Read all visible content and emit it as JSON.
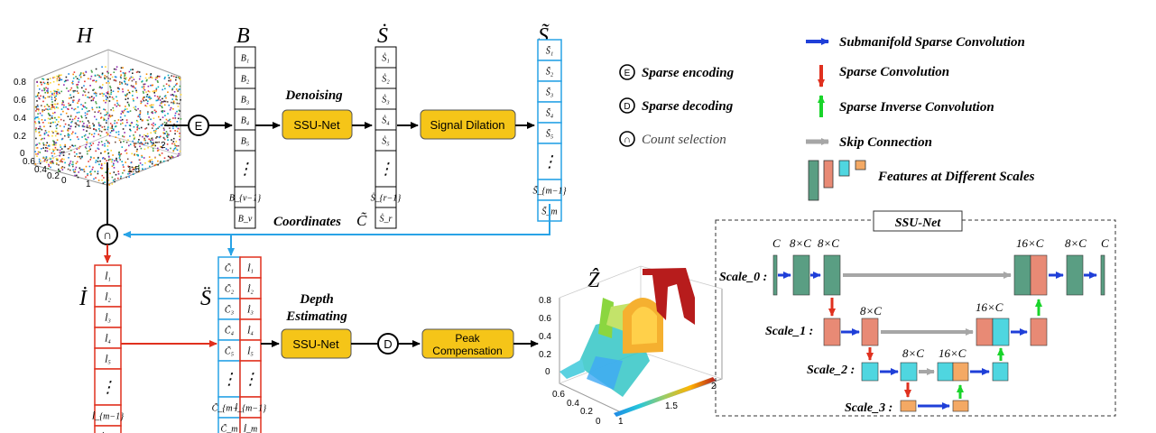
{
  "symbols": {
    "H": "H",
    "B": "B",
    "S_dot": "Ṡ",
    "S_tilde": "S̃",
    "I_dot": "İ",
    "S_ddot": "S̈",
    "Z_hat": "Ẑ"
  },
  "B_col": [
    "B₁",
    "B₂",
    "B₃",
    "B₄",
    "B₅",
    "⋮",
    "B_{v−1}",
    "B_v"
  ],
  "Sdot_col": [
    "Ṡ₁",
    "Ṡ₂",
    "Ṡ₃",
    "Ṡ₄",
    "Ṡ₅",
    "⋮",
    "Ṡ_{r−1}",
    "Ṡ_r"
  ],
  "Stilde_col": [
    "S̃₁",
    "S̃₂",
    "S̃₃",
    "S̃₄",
    "S̃₅",
    "⋮",
    "S̃_{m−1}",
    "S̃_m"
  ],
  "I_col": [
    "İ₁",
    "İ₂",
    "İ₃",
    "İ₄",
    "İ₅",
    "⋮",
    "İ_{m−1}",
    "İ_m"
  ],
  "C_col": [
    "C̃₁",
    "C̃₂",
    "C̃₃",
    "C̃₄",
    "C̃₅",
    "⋮",
    "C̃_{m−1}",
    "C̃_m"
  ],
  "labels": {
    "denoising": "Denoising",
    "ssu_net": "SSU-Net",
    "signal_dilation": "Signal Dilation",
    "coordinates": "Coordinates",
    "coordinates_sym": "C̃",
    "depth_line1": "Depth",
    "depth_line2": "Estimating",
    "peak_line1": "Peak",
    "peak_line2": "Compensation",
    "E": "E",
    "D": "D",
    "cap": "∩"
  },
  "legend": {
    "sparse_encoding": "Sparse encoding",
    "sparse_decoding": "Sparse decoding",
    "count_selection": "Count selection",
    "submanifold": "Submanifold Sparse Convolution",
    "sparse_conv": "Sparse Convolution",
    "sparse_inverse": "Sparse Inverse Convolution",
    "skip": "Skip Connection",
    "features": "Features at Different Scales"
  },
  "ssu": {
    "title": "SSU-Net",
    "scale0": "Scale_0 :",
    "scale1": "Scale_1 :",
    "scale2": "Scale_2 :",
    "scale3": "Scale_3 :",
    "c": "C",
    "c8": "8×C",
    "c16": "16×C"
  },
  "plotH": {
    "z_ticks": [
      "0.8",
      "0.6",
      "0.4",
      "0.2",
      "0"
    ],
    "x_ticks": [
      "0.6",
      "0.4",
      "0.2",
      "0"
    ],
    "y_ticks": [
      "1",
      "1.5",
      "2"
    ]
  },
  "plotZ": {
    "z_ticks": [
      "0.8",
      "0.6",
      "0.4",
      "0.2",
      "0"
    ],
    "x_ticks": [
      "0.6",
      "0.4",
      "0.2",
      "0"
    ],
    "y_ticks": [
      "1",
      "1.5",
      "2"
    ]
  },
  "colors": {
    "gold": "#f5c518",
    "blue_line": "#29a3e6",
    "red_line": "#e0301e",
    "teal": "#5a9e83",
    "salmon": "#e88a75",
    "cyan": "#4fd6e0",
    "orange": "#f4a964",
    "skip": "#a6a6a6",
    "arrow_blue": "#1f3fd8",
    "arrow_green": "#19d42a"
  }
}
